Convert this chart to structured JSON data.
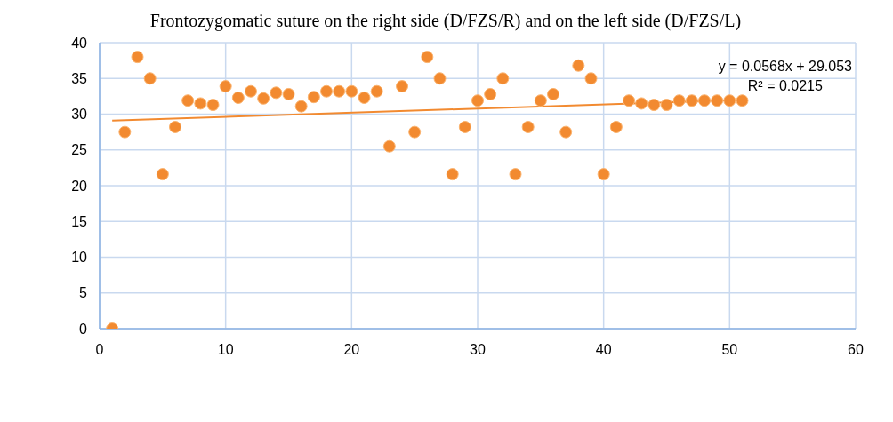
{
  "chart_data": {
    "type": "scatter",
    "title": "Frontozygomatic suture on the right side (D/FZS/R) and on the left side (D/FZS/L)",
    "annotations": [
      "y = 0.0568x + 29.053",
      "R² = 0.0215"
    ],
    "series": [
      {
        "color": "#f28a30",
        "marker": "circle",
        "x": [
          1,
          2,
          3,
          4,
          5,
          6,
          7,
          8,
          9,
          10,
          11,
          12,
          13,
          14,
          15,
          16,
          17,
          18,
          19,
          20,
          21,
          22,
          23,
          24,
          25,
          26,
          27,
          28,
          29,
          30,
          31,
          32,
          33,
          34,
          35,
          36,
          37,
          38,
          39,
          40,
          41,
          42,
          43,
          44,
          45,
          46,
          47,
          48,
          49,
          50,
          51
        ],
        "values": [
          0,
          27.5,
          38,
          35,
          21.6,
          28.2,
          31.9,
          31.5,
          31.3,
          33.9,
          32.3,
          33.2,
          32.2,
          33,
          32.8,
          31.1,
          32.4,
          33.2,
          33.2,
          33.2,
          32.3,
          33.2,
          25.5,
          33.9,
          27.5,
          38,
          35,
          21.6,
          28.2,
          31.9,
          32.8,
          35,
          21.6,
          28.2,
          31.9,
          32.8,
          27.5,
          36.8,
          35,
          21.6,
          28.2,
          31.9,
          31.5,
          31.3,
          31.3,
          31.9,
          31.9,
          31.9,
          31.9,
          31.9,
          31.9
        ]
      },
      {
        "type": "line",
        "color": "#f28a30",
        "marker": "none",
        "x": [
          1,
          51
        ],
        "values": [
          29.1,
          32.0
        ]
      }
    ],
    "xlim": [
      0,
      60
    ],
    "xticks": [
      0,
      10,
      20,
      30,
      40,
      50,
      60
    ],
    "ylim": [
      0,
      40
    ],
    "yticks": [
      0,
      5,
      10,
      15,
      20,
      25,
      30,
      35,
      40
    ],
    "grid": true,
    "line_style": "solid"
  }
}
